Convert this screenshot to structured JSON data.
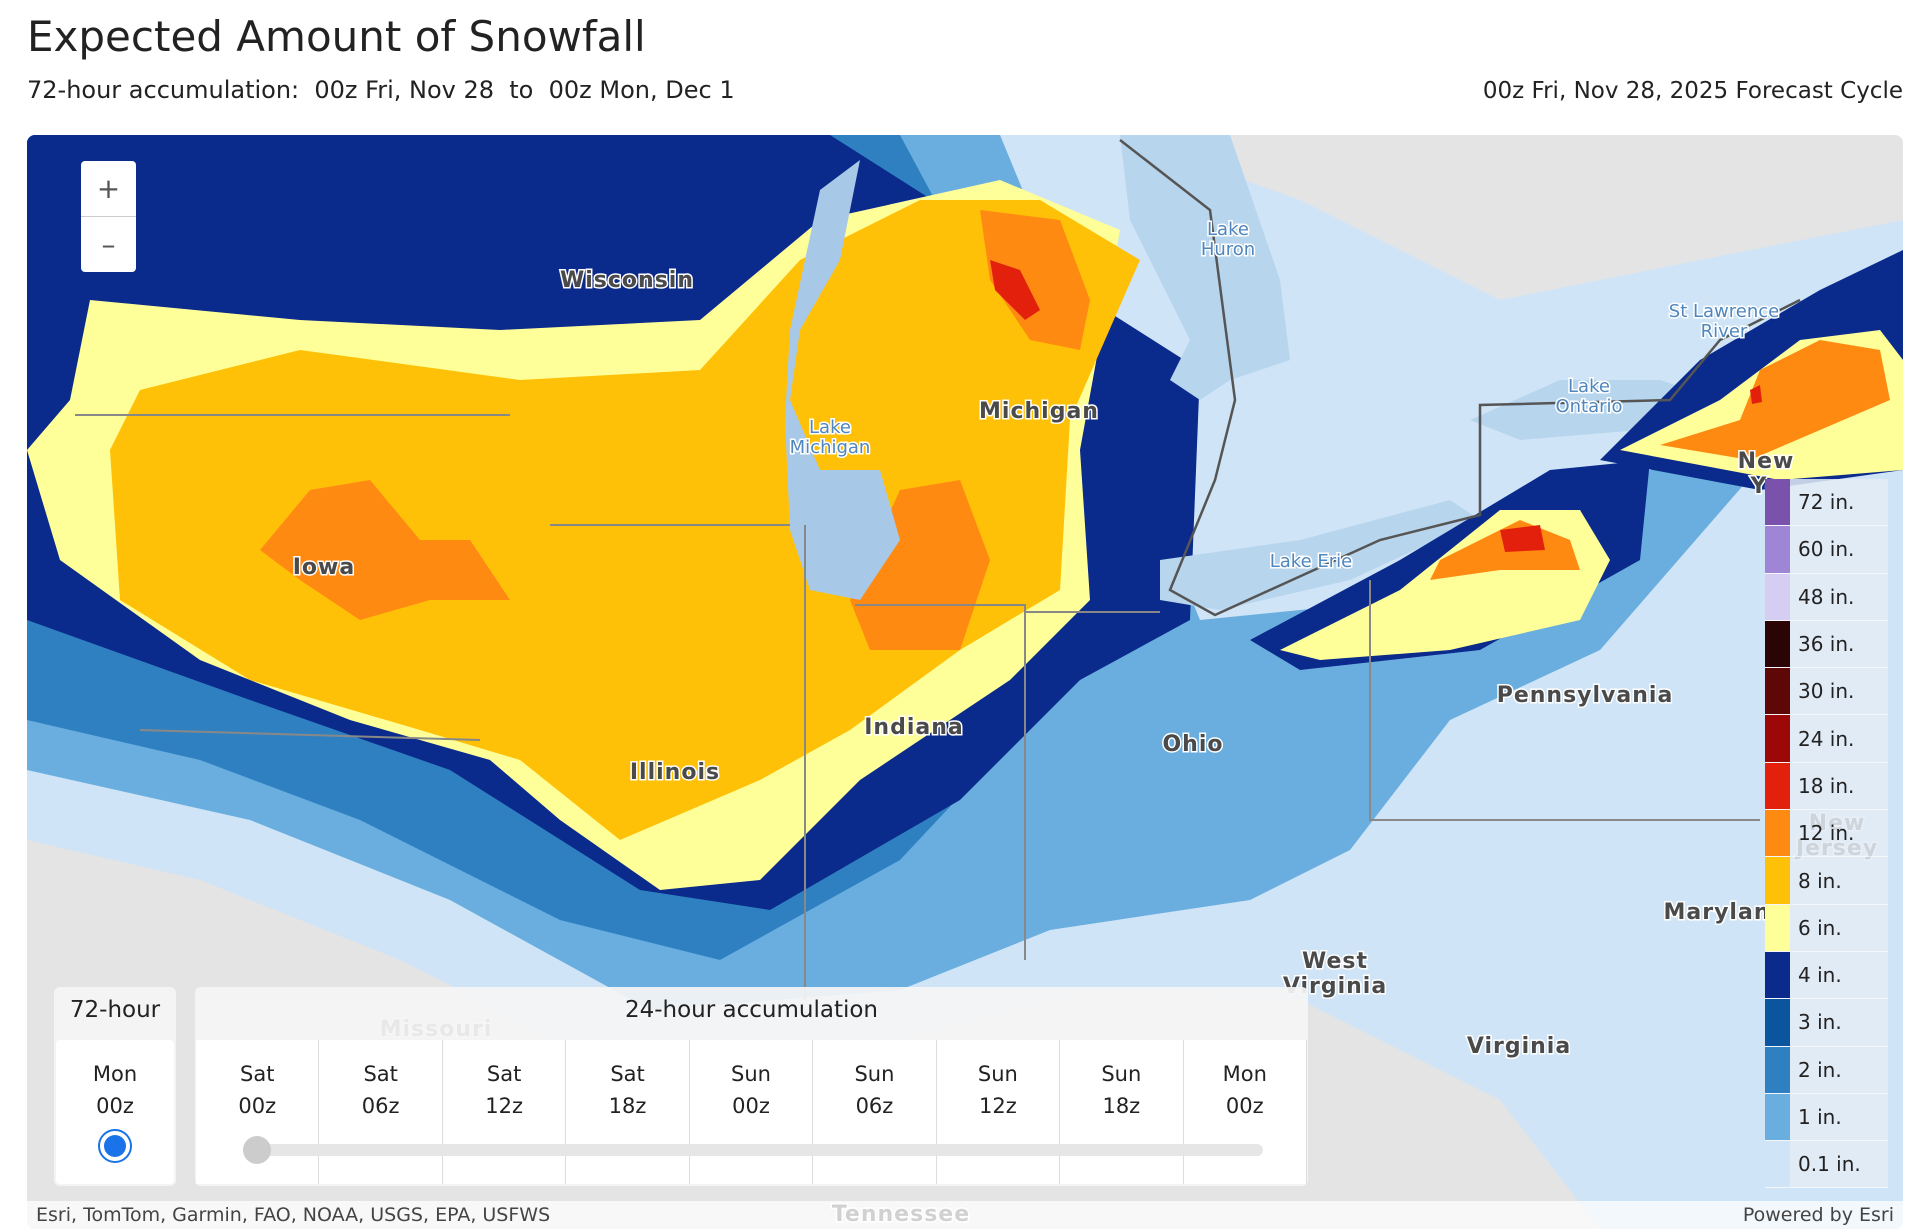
{
  "header": {
    "title": "Expected Amount of Snowfall",
    "subtitle": "72-hour accumulation:  00z Fri, Nov 28  to  00z Mon, Dec 1",
    "cycle": "00z Fri, Nov 28, 2025 Forecast Cycle"
  },
  "map": {
    "zoom_in": "+",
    "zoom_out": "–",
    "labels": [
      {
        "kind": "state",
        "lines": [
          "Wisconsin"
        ]
      },
      {
        "kind": "state",
        "lines": [
          "Iowa"
        ]
      },
      {
        "kind": "state",
        "lines": [
          "Illinois"
        ]
      },
      {
        "kind": "state",
        "lines": [
          "Indiana"
        ]
      },
      {
        "kind": "state",
        "lines": [
          "Michigan"
        ]
      },
      {
        "kind": "state",
        "lines": [
          "Ohio"
        ]
      },
      {
        "kind": "state",
        "lines": [
          "Pennsylvania"
        ]
      },
      {
        "kind": "state",
        "lines": [
          "West",
          "Virginia"
        ]
      },
      {
        "kind": "state",
        "lines": [
          "Virginia"
        ]
      },
      {
        "kind": "state",
        "lines": [
          "Marylan"
        ]
      },
      {
        "kind": "state",
        "lines": [
          "Missouri"
        ]
      },
      {
        "kind": "state",
        "lines": [
          "Tennessee"
        ]
      },
      {
        "kind": "state",
        "lines": [
          "New",
          "Yo"
        ]
      },
      {
        "kind": "state",
        "lines": [
          "New",
          "Jersey"
        ]
      },
      {
        "kind": "water",
        "lines": [
          "Lake",
          "Michigan"
        ]
      },
      {
        "kind": "water",
        "lines": [
          "Lake",
          "Huron"
        ]
      },
      {
        "kind": "water",
        "lines": [
          "Lake Erie"
        ]
      },
      {
        "kind": "water",
        "lines": [
          "Lake",
          "Ontario"
        ]
      },
      {
        "kind": "water",
        "lines": [
          "St Lawrence",
          "River"
        ]
      }
    ],
    "legend": [
      {
        "label": "72 in.",
        "color": "#7b52ab"
      },
      {
        "label": "60 in.",
        "color": "#9f85d6"
      },
      {
        "label": "48 in.",
        "color": "#d6cdf3"
      },
      {
        "label": "36 in.",
        "color": "#2b0505"
      },
      {
        "label": "30 in.",
        "color": "#5e0707"
      },
      {
        "label": "24 in.",
        "color": "#9c0707"
      },
      {
        "label": "18 in.",
        "color": "#e3200c"
      },
      {
        "label": "12 in.",
        "color": "#ff8a12"
      },
      {
        "label": "8 in.",
        "color": "#ffc107"
      },
      {
        "label": "6 in.",
        "color": "#ffff99"
      },
      {
        "label": "4 in.",
        "color": "#0a2a8c"
      },
      {
        "label": "3 in.",
        "color": "#0b559f"
      },
      {
        "label": "2 in.",
        "color": "#2f80c1"
      },
      {
        "label": "1 in.",
        "color": "#6aaee0"
      },
      {
        "label": "0.1 in.",
        "color": "#cfe4f6"
      }
    ]
  },
  "timeline": {
    "full_tab": "72-hour",
    "full_day": "Mon",
    "full_hour": "00z",
    "steps_title": "24-hour accumulation",
    "steps": [
      {
        "day": "Sat",
        "hour": "00z"
      },
      {
        "day": "Sat",
        "hour": "06z"
      },
      {
        "day": "Sat",
        "hour": "12z"
      },
      {
        "day": "Sat",
        "hour": "18z"
      },
      {
        "day": "Sun",
        "hour": "00z"
      },
      {
        "day": "Sun",
        "hour": "06z"
      },
      {
        "day": "Sun",
        "hour": "12z"
      },
      {
        "day": "Sun",
        "hour": "18z"
      },
      {
        "day": "Mon",
        "hour": "00z"
      }
    ]
  },
  "attribution": "Esri, TomTom, Garmin, FAO, NOAA, USGS, EPA, USFWS",
  "powered": "Powered by Esri"
}
